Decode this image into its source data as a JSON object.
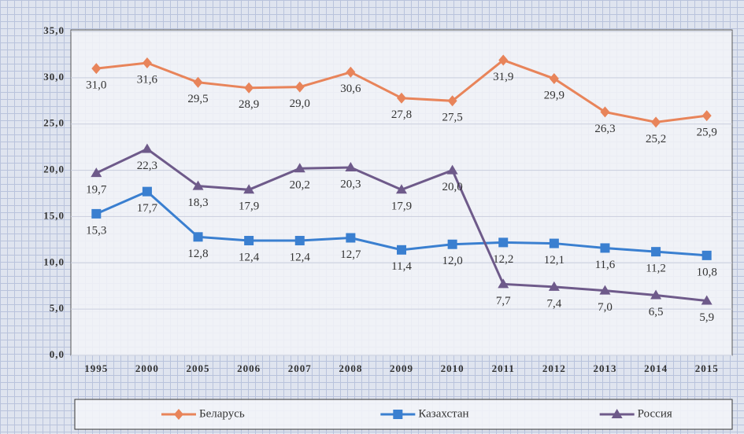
{
  "chart_data": {
    "type": "line",
    "categories": [
      "1995",
      "2000",
      "2005",
      "2006",
      "2007",
      "2008",
      "2009",
      "2010",
      "2011",
      "2012",
      "2013",
      "2014",
      "2015"
    ],
    "series": [
      {
        "name": "Беларусь",
        "color": "#e8845a",
        "marker": "diamond",
        "values": [
          31.0,
          31.6,
          29.5,
          28.9,
          29.0,
          30.6,
          27.8,
          27.5,
          31.9,
          29.9,
          26.3,
          25.2,
          25.9
        ],
        "value_labels": [
          "31,0",
          "31,6",
          "29,5",
          "28,9",
          "29,0",
          "30,6",
          "27,8",
          "27,5",
          "31,9",
          "29,9",
          "26,3",
          "25,2",
          "25,9"
        ]
      },
      {
        "name": "Казахстан",
        "color": "#3a7fd0",
        "marker": "square",
        "values": [
          15.3,
          17.7,
          12.8,
          12.4,
          12.4,
          12.7,
          11.4,
          12.0,
          12.2,
          12.1,
          11.6,
          11.2,
          10.8
        ],
        "value_labels": [
          "15,3",
          "17,7",
          "12,8",
          "12,4",
          "12,4",
          "12,7",
          "11,4",
          "12,0",
          "12,2",
          "12,1",
          "11,6",
          "11,2",
          "10,8"
        ]
      },
      {
        "name": "Россия",
        "color": "#6e5a8a",
        "marker": "triangle",
        "values": [
          19.7,
          22.3,
          18.3,
          17.9,
          20.2,
          20.3,
          17.9,
          20.0,
          7.7,
          7.4,
          7.0,
          6.5,
          5.9
        ],
        "value_labels": [
          "19,7",
          "22,3",
          "18,3",
          "17,9",
          "20,2",
          "20,3",
          "17,9",
          "20,0",
          "7,7",
          "7,4",
          "7,0",
          "6,5",
          "5,9"
        ]
      }
    ],
    "ylim": [
      0,
      35
    ],
    "yticks": [
      {
        "value": 0,
        "label": "0,0"
      },
      {
        "value": 5,
        "label": "5,0"
      },
      {
        "value": 10,
        "label": "10,0"
      },
      {
        "value": 15,
        "label": "15,0"
      },
      {
        "value": 20,
        "label": "20,0"
      },
      {
        "value": 25,
        "label": "25,0"
      },
      {
        "value": 30,
        "label": "30,0"
      },
      {
        "value": 35,
        "label": "35,0"
      }
    ],
    "grid": true,
    "legend": "bottom"
  }
}
